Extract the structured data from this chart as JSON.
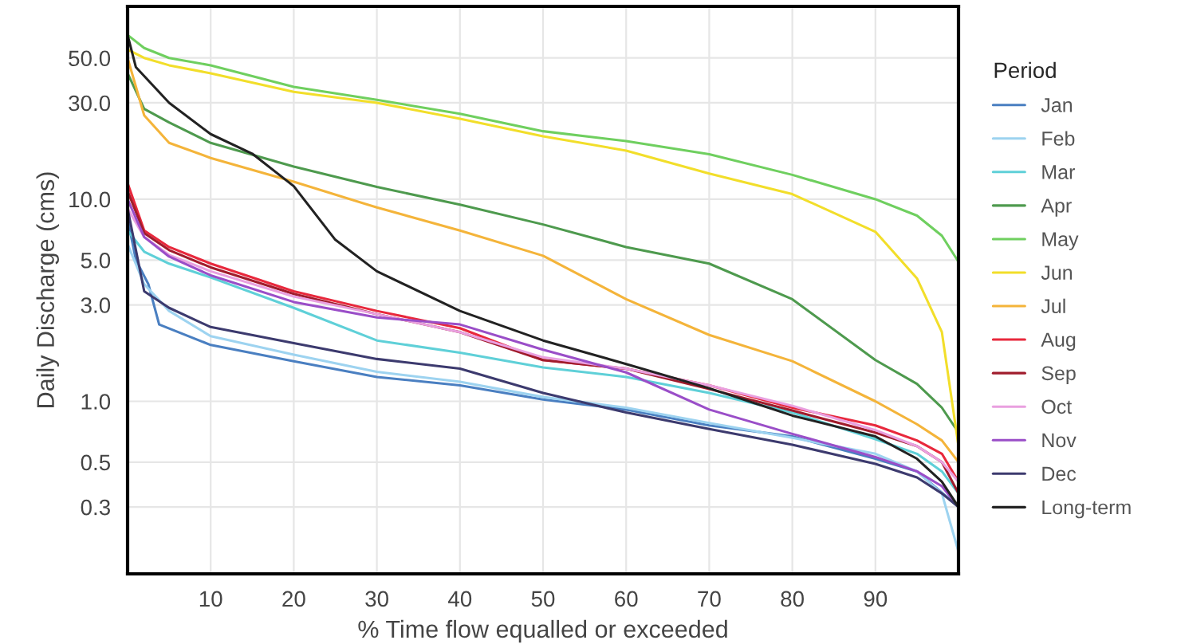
{
  "chart_data": {
    "type": "line",
    "xlabel": "% Time flow equalled or exceeded",
    "ylabel": "Daily Discharge (cms)",
    "legend_title": "Period",
    "legend": "right",
    "grid": true,
    "log": "y",
    "line_style": "solid",
    "marker": "none",
    "xlim": [
      0,
      100
    ],
    "xticks": [
      10,
      20,
      30,
      40,
      50,
      60,
      70,
      80,
      90
    ],
    "ylim": [
      0.14,
      90
    ],
    "yticks": [
      {
        "value": 0.3,
        "label": "0.3"
      },
      {
        "value": 0.5,
        "label": "0.5"
      },
      {
        "value": 1,
        "label": "1.0"
      },
      {
        "value": 3,
        "label": "3.0"
      },
      {
        "value": 5,
        "label": "5.0"
      },
      {
        "value": 10,
        "label": "10.0"
      },
      {
        "value": 30,
        "label": "30.0"
      },
      {
        "value": 50,
        "label": "50.0"
      }
    ],
    "x": [
      0,
      2,
      5,
      10,
      20,
      30,
      40,
      50,
      60,
      70,
      80,
      90,
      95,
      98,
      100
    ],
    "series": [
      {
        "name": "Jan",
        "color": "#4a7fc1",
        "x": [
          0,
          1,
          2.5,
          3.8,
          10,
          20,
          30,
          40,
          50,
          60,
          70,
          80,
          90,
          95,
          100
        ],
        "values": [
          8,
          5,
          3.8,
          2.4,
          1.9,
          1.58,
          1.32,
          1.2,
          1.02,
          0.91,
          0.76,
          0.67,
          0.52,
          0.45,
          0.3
        ]
      },
      {
        "name": "Feb",
        "color": "#9dd3f0",
        "values": [
          6,
          3.8,
          2.8,
          2.1,
          1.7,
          1.4,
          1.25,
          1.05,
          0.93,
          0.78,
          0.66,
          0.55,
          0.45,
          0.35,
          0.18
        ]
      },
      {
        "name": "Mar",
        "color": "#5fd0d8",
        "values": [
          7,
          5.5,
          4.8,
          4.1,
          2.9,
          2.0,
          1.74,
          1.47,
          1.32,
          1.1,
          0.88,
          0.65,
          0.55,
          0.45,
          0.35
        ]
      },
      {
        "name": "Apr",
        "color": "#4e9a4e",
        "values": [
          42,
          28,
          24,
          19,
          14.5,
          11.5,
          9.4,
          7.5,
          5.8,
          4.8,
          3.2,
          1.6,
          1.22,
          0.93,
          0.7
        ]
      },
      {
        "name": "May",
        "color": "#6fcf5f",
        "values": [
          65,
          56,
          50,
          46,
          36,
          31,
          26.5,
          21.7,
          19.4,
          16.7,
          13.2,
          10,
          8.3,
          6.6,
          4.9
        ]
      },
      {
        "name": "Jun",
        "color": "#f2de2a",
        "values": [
          55,
          50,
          46,
          42,
          34,
          30,
          25,
          20.5,
          17.4,
          13.4,
          10.6,
          6.9,
          4.06,
          2.2,
          0.6
        ]
      },
      {
        "name": "Jul",
        "color": "#f4b43a",
        "values": [
          50,
          26,
          19,
          16,
          12.2,
          9.1,
          7.0,
          5.25,
          3.2,
          2.13,
          1.58,
          1.0,
          0.77,
          0.64,
          0.5
        ]
      },
      {
        "name": "Aug",
        "color": "#e8283c",
        "values": [
          12,
          7,
          5.8,
          4.8,
          3.5,
          2.8,
          2.3,
          1.6,
          1.45,
          1.2,
          0.93,
          0.76,
          0.64,
          0.55,
          0.4
        ]
      },
      {
        "name": "Sep",
        "color": "#a01c2c",
        "values": [
          11,
          6.8,
          5.6,
          4.6,
          3.4,
          2.7,
          2.2,
          1.6,
          1.45,
          1.15,
          0.9,
          0.7,
          0.6,
          0.5,
          0.35
        ]
      },
      {
        "name": "Oct",
        "color": "#e9a0e0",
        "values": [
          9,
          6.5,
          5.3,
          4.4,
          3.3,
          2.7,
          2.2,
          1.65,
          1.45,
          1.2,
          0.95,
          0.72,
          0.6,
          0.5,
          0.4
        ]
      },
      {
        "name": "Nov",
        "color": "#9a4ec8",
        "values": [
          10,
          6.5,
          5.2,
          4.2,
          3.1,
          2.6,
          2.4,
          1.8,
          1.39,
          0.91,
          0.69,
          0.53,
          0.45,
          0.38,
          0.3
        ]
      },
      {
        "name": "Dec",
        "color": "#3c3a6e",
        "values": [
          9,
          3.5,
          2.9,
          2.33,
          1.94,
          1.62,
          1.45,
          1.1,
          0.88,
          0.73,
          0.61,
          0.49,
          0.42,
          0.35,
          0.3
        ]
      },
      {
        "name": "Long-term",
        "color": "#222222",
        "x": [
          0,
          1,
          5,
          10,
          15,
          20,
          25,
          30,
          40,
          50,
          60,
          70,
          80,
          90,
          95,
          98,
          100
        ],
        "values": [
          65,
          45,
          30,
          21,
          16.8,
          11.6,
          6.3,
          4.4,
          2.8,
          2.0,
          1.53,
          1.16,
          0.85,
          0.67,
          0.52,
          0.4,
          0.3
        ]
      }
    ]
  }
}
